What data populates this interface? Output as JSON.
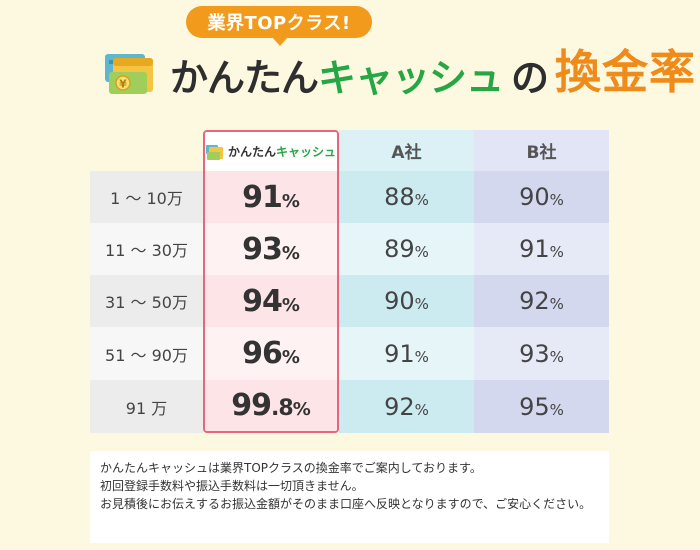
{
  "header": {
    "badge": "業界TOPクラス!",
    "brand_part1": "かんたん",
    "brand_part2": "キャッシュ",
    "particle": "の",
    "keyword": "換金率",
    "icon": "wallet-yen-icon",
    "colors": {
      "badge": "#f29a1c",
      "brand_green": "#27a644",
      "keyword_orange": "#ee8b1a"
    }
  },
  "table": {
    "brand_header": {
      "part1": "かんたん",
      "part2": "キャッシュ",
      "icon": "wallet-icon"
    },
    "columns": [
      "A社",
      "B社"
    ],
    "rows": [
      {
        "range": "1 〜 10万",
        "brand": "91",
        "brand_dec": "",
        "brand_pct": "%",
        "a": "88",
        "a_pct": "%",
        "b": "90",
        "b_pct": "%"
      },
      {
        "range": "11 〜 30万",
        "brand": "93",
        "brand_dec": "",
        "brand_pct": "%",
        "a": "89",
        "a_pct": "%",
        "b": "91",
        "b_pct": "%"
      },
      {
        "range": "31 〜 50万",
        "brand": "94",
        "brand_dec": "",
        "brand_pct": "%",
        "a": "90",
        "a_pct": "%",
        "b": "92",
        "b_pct": "%"
      },
      {
        "range": "51 〜 90万",
        "brand": "96",
        "brand_dec": "",
        "brand_pct": "%",
        "a": "91",
        "a_pct": "%",
        "b": "93",
        "b_pct": "%"
      },
      {
        "range": "91 万",
        "brand": "99",
        "brand_dec": ".8",
        "brand_pct": "%",
        "a": "92",
        "a_pct": "%",
        "b": "95",
        "b_pct": "%"
      }
    ],
    "colors": {
      "highlight_border": "#e8667b"
    }
  },
  "note": {
    "lines": [
      "かんたんキャッシュは業界TOPクラスの換金率でご案内しております。",
      "初回登録手数料や振込手数料は一切頂きません。",
      "お見積後にお伝えするお振込金額がそのまま口座へ反映となりますので、ご安心ください。"
    ]
  }
}
